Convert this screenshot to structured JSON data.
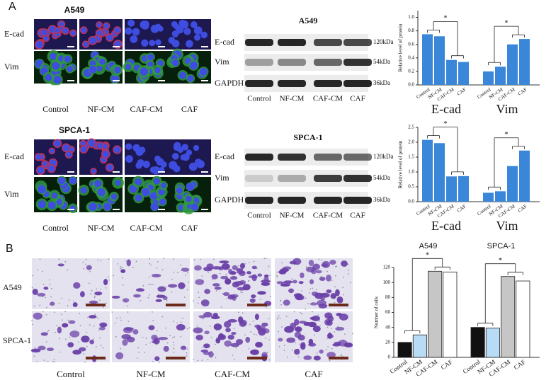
{
  "panel_a": {
    "label": "A",
    "imaging": [
      {
        "title": "A549",
        "rows": [
          "E-cad",
          "Vim"
        ],
        "columns": [
          "Control",
          "NF-CM",
          "CAF-CM",
          "CAF"
        ]
      },
      {
        "title": "SPCA-1",
        "rows": [
          "E-cad",
          "Vim"
        ],
        "columns": [
          "Control",
          "NF-CM",
          "CAF-CM",
          "CAF"
        ]
      }
    ],
    "blots": [
      {
        "title": "A549",
        "rows": [
          "E-cad",
          "Vim",
          "GAPDH"
        ],
        "sizes": [
          "120kDa",
          "54kDa",
          "36kDa"
        ],
        "lanes": [
          "Control",
          "NF-CM",
          "CAF-CM",
          "CAF"
        ]
      },
      {
        "title": "SPCA-1",
        "rows": [
          "E-cad",
          "Vim",
          "GAPDH"
        ],
        "sizes": [
          "120kDa",
          "54kDa",
          "36kDa"
        ],
        "lanes": [
          "Control",
          "NF-CM",
          "CAF-CM",
          "CAF"
        ]
      }
    ]
  },
  "panel_b": {
    "label": "B",
    "rows": [
      "A549",
      "SPCA-1"
    ],
    "columns": [
      "Control",
      "NF-CM",
      "CAF-CM",
      "CAF"
    ]
  },
  "chart_data": [
    {
      "type": "bar",
      "ylabel": "Relative level of protein",
      "categories": [
        "Control",
        "NF-CM",
        "CAF-CM",
        "CAF"
      ],
      "groups": [
        {
          "name": "E-cad",
          "values": [
            0.75,
            0.72,
            0.37,
            0.34
          ]
        },
        {
          "name": "Vim",
          "values": [
            0.2,
            0.27,
            0.6,
            0.68
          ]
        }
      ],
      "color": "#3a87d9",
      "ylim": [
        0,
        1.1
      ],
      "yticks": [
        {
          "value": 0,
          "label": "0.0"
        },
        0.2,
        0.4,
        0.6,
        0.8,
        {
          "value": 1,
          "label": "1.0"
        }
      ],
      "annotations": [
        "*",
        "*"
      ]
    },
    {
      "type": "bar",
      "ylabel": "Relative level of protein",
      "categories": [
        "Control",
        "NF-CM",
        "CAF-CM",
        "CAF"
      ],
      "groups": [
        {
          "name": "E-cad",
          "values": [
            2.08,
            1.97,
            0.85,
            0.86
          ]
        },
        {
          "name": "Vim",
          "values": [
            0.3,
            0.35,
            1.2,
            1.72
          ]
        }
      ],
      "color": "#3a87d9",
      "ylim": [
        0,
        2.5
      ],
      "yticks": [
        {
          "value": 0,
          "label": "0.0"
        },
        0.5,
        {
          "value": 1,
          "label": "1.0"
        },
        1.5,
        {
          "value": 2,
          "label": "2.0"
        },
        2.5
      ],
      "annotations": [
        "*",
        "*"
      ]
    },
    {
      "type": "bar",
      "ylabel": "Number of cells",
      "categories": [
        "Control",
        "NF-CM",
        "CAF-CM",
        "CAF"
      ],
      "groups": [
        {
          "name": "A549",
          "values": [
            20,
            30,
            115,
            114
          ]
        },
        {
          "name": "SPCA-1",
          "values": [
            40,
            39,
            108,
            102
          ]
        }
      ],
      "colors": [
        "#111111",
        "#b8dcf5",
        "#c6c6c6",
        "#ffffff"
      ],
      "ylim": [
        0,
        120
      ],
      "yticks": [
        0,
        20,
        40,
        60,
        80,
        100,
        120
      ],
      "annotations": [
        "*",
        "*"
      ]
    }
  ]
}
